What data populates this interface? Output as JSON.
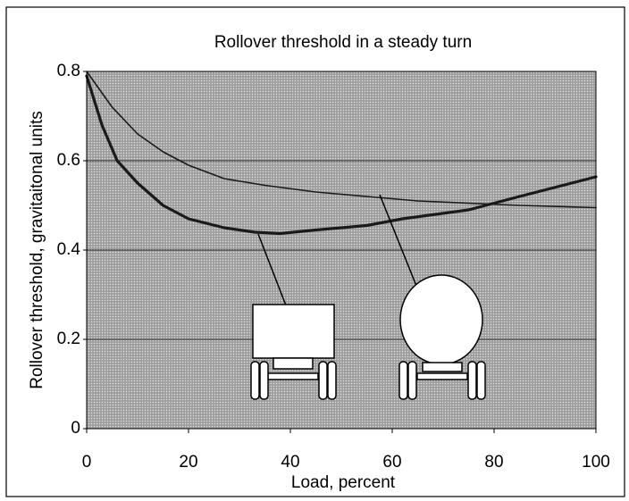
{
  "chart_data": {
    "type": "line",
    "title": "Rollover threshold in a steady turn",
    "xlabel": "Load, percent",
    "ylabel": "Rollover threshold, gravitaitonal units",
    "series": [
      {
        "color": "#1a1a1a",
        "line_width": 1.6,
        "x": [
          0,
          5,
          10,
          15,
          20,
          27,
          35,
          45,
          55,
          65,
          75,
          85,
          100
        ],
        "values": [
          0.8,
          0.72,
          0.66,
          0.62,
          0.59,
          0.56,
          0.545,
          0.53,
          0.52,
          0.51,
          0.505,
          0.5,
          0.495
        ]
      },
      {
        "color": "#1a1a1a",
        "line_width": 3.2,
        "x": [
          0,
          3,
          6,
          10,
          15,
          20,
          27,
          33,
          38,
          45,
          55,
          62,
          75,
          85,
          100
        ],
        "values": [
          0.79,
          0.68,
          0.6,
          0.55,
          0.5,
          0.47,
          0.45,
          0.44,
          0.437,
          0.445,
          0.455,
          0.47,
          0.49,
          0.52,
          0.564
        ]
      }
    ],
    "xlim": [
      0,
      100
    ],
    "xticks": [
      0,
      20,
      40,
      60,
      80,
      100
    ],
    "ylim": [
      0,
      0.8
    ],
    "yticks": [
      0,
      0.2,
      0.4,
      0.6,
      0.8
    ],
    "grid": true
  }
}
